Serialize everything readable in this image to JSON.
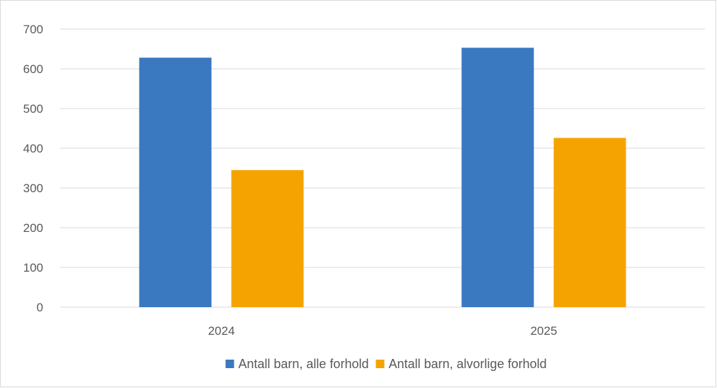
{
  "chart_data": {
    "type": "bar",
    "categories": [
      "2024",
      "2025"
    ],
    "series": [
      {
        "name": "Antall barn, alle forhold",
        "color": "#3a78c0",
        "values": [
          628,
          653
        ]
      },
      {
        "name": "Antall barn, alvorlige forhold",
        "color": "#f5a300",
        "values": [
          345,
          426
        ]
      }
    ],
    "title": "",
    "xlabel": "",
    "ylabel": "",
    "ylim": [
      0,
      700
    ],
    "yticks": [
      "0",
      "100",
      "200",
      "300",
      "400",
      "500",
      "600",
      "700"
    ],
    "grid": true,
    "legend": "bottom"
  }
}
